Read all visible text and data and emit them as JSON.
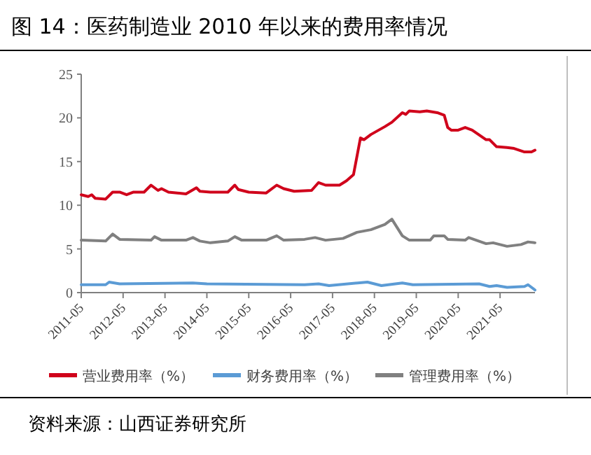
{
  "chart_data": {
    "type": "line",
    "title": "图 14：医药制造业 2010 年以来的费用率情况",
    "annotations": [
      "资料来源：山西证券研究所"
    ],
    "xlim": [
      "2011-05",
      "2022-03"
    ],
    "xticks": [
      {
        "value": "2011-05",
        "label": "2011-05"
      },
      {
        "value": "2012-05",
        "label": "2012-05"
      },
      {
        "value": "2013-05",
        "label": "2013-05"
      },
      {
        "value": "2014-05",
        "label": "2014-05"
      },
      {
        "value": "2015-05",
        "label": "2015-05"
      },
      {
        "value": "2016-05",
        "label": "2016-05"
      },
      {
        "value": "2017-05",
        "label": "2017-05"
      },
      {
        "value": "2018-05",
        "label": "2018-05"
      },
      {
        "value": "2019-05",
        "label": "2019-05"
      },
      {
        "value": "2020-05",
        "label": "2020-05"
      },
      {
        "value": "2021-05",
        "label": "2021-05"
      }
    ],
    "ylim": [
      0,
      25
    ],
    "yticks": [
      0,
      5,
      10,
      15,
      20,
      25
    ],
    "grid": false,
    "legend": "bottom",
    "line_style": "solid",
    "marker": "none",
    "series": [
      {
        "name": "营业费用率（%）",
        "color": "#d0021b",
        "x": [
          "2011-05",
          "2011-07",
          "2011-08",
          "2011-09",
          "2011-12",
          "2012-02",
          "2012-04",
          "2012-06",
          "2012-08",
          "2012-11",
          "2013-01",
          "2013-03",
          "2013-04",
          "2013-06",
          "2013-11",
          "2014-02",
          "2014-03",
          "2014-06",
          "2014-11",
          "2015-01",
          "2015-02",
          "2015-05",
          "2015-10",
          "2016-01",
          "2016-03",
          "2016-06",
          "2016-11",
          "2017-01",
          "2017-03",
          "2017-07",
          "2017-09",
          "2017-11",
          "2018-01",
          "2018-02",
          "2018-04",
          "2018-08",
          "2018-10",
          "2019-01",
          "2019-02",
          "2019-03",
          "2019-06",
          "2019-08",
          "2019-11",
          "2020-01",
          "2020-02",
          "2020-03",
          "2020-05",
          "2020-07",
          "2020-09",
          "2021-01",
          "2021-02",
          "2021-04",
          "2021-07",
          "2021-09",
          "2021-12",
          "2022-02",
          "2022-03"
        ],
        "values": [
          11.2,
          11.0,
          11.2,
          10.8,
          10.7,
          11.5,
          11.5,
          11.2,
          11.5,
          11.5,
          12.3,
          11.7,
          11.9,
          11.5,
          11.3,
          12.0,
          11.6,
          11.5,
          11.5,
          12.3,
          11.8,
          11.5,
          11.4,
          12.3,
          11.9,
          11.6,
          11.7,
          12.6,
          12.3,
          12.3,
          12.8,
          13.5,
          17.7,
          17.5,
          18.1,
          19.0,
          19.5,
          20.6,
          20.4,
          20.8,
          20.7,
          20.8,
          20.6,
          20.3,
          18.9,
          18.6,
          18.6,
          18.9,
          18.6,
          17.5,
          17.5,
          16.7,
          16.6,
          16.5,
          16.1,
          16.1,
          16.3
        ]
      },
      {
        "name": "财务费用率（%）",
        "color": "#5b9bd5",
        "x": [
          "2011-05",
          "2011-12",
          "2012-01",
          "2012-04",
          "2014-01",
          "2014-05",
          "2016-09",
          "2017-01",
          "2017-04",
          "2018-03",
          "2018-07",
          "2019-01",
          "2019-04",
          "2020-11",
          "2021-02",
          "2021-04",
          "2021-07",
          "2021-12",
          "2022-01",
          "2022-03"
        ],
        "values": [
          0.9,
          0.9,
          1.2,
          1.0,
          1.1,
          1.0,
          0.9,
          1.0,
          0.8,
          1.2,
          0.8,
          1.1,
          0.9,
          1.0,
          0.7,
          0.8,
          0.6,
          0.7,
          0.9,
          0.3
        ]
      },
      {
        "name": "管理费用率（%）",
        "color": "#808080",
        "x": [
          "2011-05",
          "2011-12",
          "2012-02",
          "2012-04",
          "2013-01",
          "2013-02",
          "2013-04",
          "2013-11",
          "2014-01",
          "2014-03",
          "2014-06",
          "2014-11",
          "2015-01",
          "2015-03",
          "2015-10",
          "2016-01",
          "2016-03",
          "2016-09",
          "2016-12",
          "2017-03",
          "2017-08",
          "2017-12",
          "2018-04",
          "2018-08",
          "2018-10",
          "2019-01",
          "2019-03",
          "2019-09",
          "2019-10",
          "2020-01",
          "2020-02",
          "2020-07",
          "2020-08",
          "2021-01",
          "2021-03",
          "2021-07",
          "2021-11",
          "2022-01",
          "2022-03"
        ],
        "values": [
          6.0,
          5.9,
          6.7,
          6.1,
          6.0,
          6.4,
          6.0,
          6.0,
          6.3,
          5.9,
          5.7,
          5.9,
          6.4,
          6.0,
          6.0,
          6.5,
          6.0,
          6.1,
          6.3,
          6.0,
          6.2,
          6.9,
          7.2,
          7.8,
          8.4,
          6.5,
          6.0,
          6.0,
          6.5,
          6.5,
          6.1,
          6.0,
          6.3,
          5.6,
          5.7,
          5.3,
          5.5,
          5.8,
          5.7
        ]
      }
    ]
  }
}
